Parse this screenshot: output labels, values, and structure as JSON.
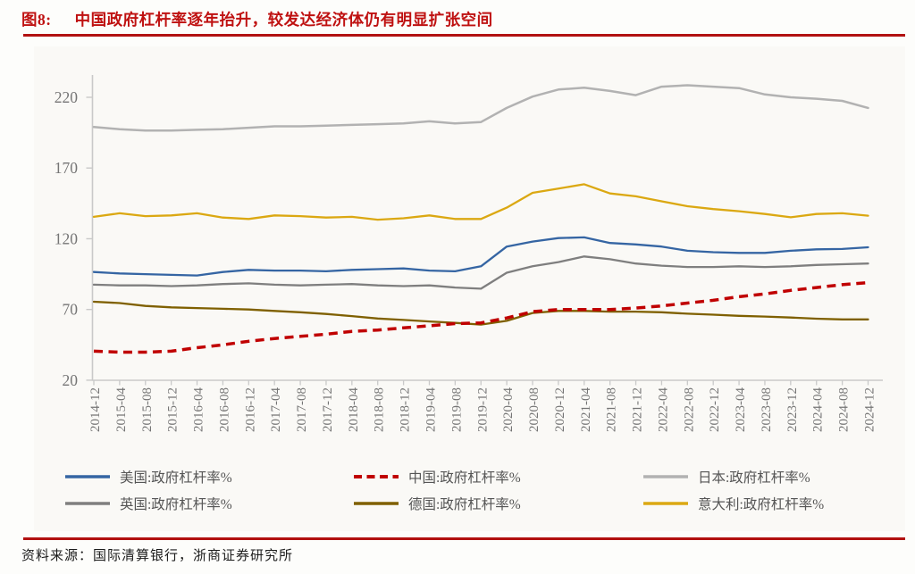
{
  "figure": {
    "label": "图8:",
    "title": "中国政府杠杆率逐年抬升，较发达经济体仍有明显扩张空间"
  },
  "source_text": "资料来源：国际清算银行，浙商证券研究所",
  "accent_colors": {
    "title_red": "#bf1111",
    "rule_red": "#b21111",
    "axis_gray": "#c9c9c9",
    "tick_label_gray": "#757575"
  },
  "chart_data": {
    "type": "line",
    "title": "中国政府杠杆率逐年抬升，较发达经济体仍有明显扩张空间",
    "xlabel": "",
    "ylabel": "",
    "ylim": [
      20,
      220
    ],
    "y_ticks": [
      220,
      170,
      120,
      70,
      20
    ],
    "grid": false,
    "legend_position": "bottom",
    "x_labels": [
      "2014-12",
      "2015-04",
      "2015-08",
      "2015-12",
      "2016-04",
      "2016-08",
      "2016-12",
      "2017-04",
      "2017-08",
      "2017-12",
      "2018-04",
      "2018-08",
      "2018-12",
      "2019-04",
      "2019-08",
      "2019-12",
      "2020-04",
      "2020-08",
      "2020-12",
      "2021-04",
      "2021-08",
      "2021-12",
      "2022-04",
      "2022-08",
      "2022-12",
      "2023-04",
      "2023-08",
      "2023-12",
      "2024-04",
      "2024-08",
      "2024-12"
    ],
    "series": [
      {
        "id": "us",
        "name": "美国:政府杠杆率%",
        "color": "#3565a3",
        "dashed": false,
        "values": [
          96.5,
          95.5,
          95,
          94.5,
          94,
          96.5,
          98,
          97.5,
          97.5,
          97,
          98,
          98.5,
          99,
          97.5,
          97,
          100.5,
          114.5,
          118,
          120.5,
          121,
          117,
          116,
          114.5,
          111.5,
          110.5,
          110,
          110,
          111.5,
          112.5,
          112.8,
          114
        ]
      },
      {
        "id": "china",
        "name": "中国:政府杠杆率%",
        "color": "#c00000",
        "dashed": true,
        "values": [
          40.5,
          39.8,
          39.8,
          40.5,
          43,
          45,
          47.5,
          49.5,
          51,
          52.5,
          54.5,
          55.5,
          57,
          58.5,
          60,
          60.5,
          64,
          68.5,
          70,
          70,
          70,
          71,
          72.5,
          74.5,
          76.5,
          79,
          81,
          83.5,
          85.5,
          87.5,
          89
        ]
      },
      {
        "id": "japan",
        "name": "日本:政府杠杆率%",
        "color": "#b2b2b2",
        "dashed": false,
        "values": [
          199,
          197.5,
          196.5,
          196.5,
          197,
          197.5,
          198.5,
          199.5,
          199.5,
          200,
          200.5,
          201,
          201.5,
          203,
          201.5,
          202.5,
          212.5,
          220.5,
          225.5,
          226.8,
          224.5,
          221.5,
          227.5,
          228.5,
          227.5,
          226.5,
          222,
          220,
          219,
          217.5,
          212.5
        ]
      },
      {
        "id": "uk",
        "name": "英国:政府杠杆率%",
        "color": "#7f7f7f",
        "dashed": false,
        "values": [
          87.5,
          87,
          87,
          86.5,
          87,
          88,
          88.5,
          87.5,
          87,
          87.5,
          88,
          87,
          86.5,
          87,
          85.5,
          84.7,
          96,
          100.5,
          103.5,
          107.5,
          105.5,
          102.5,
          101,
          100,
          100,
          100.5,
          100,
          100.5,
          101.5,
          102,
          102.5
        ]
      },
      {
        "id": "germany",
        "name": "德国:政府杠杆率%",
        "color": "#7f6000",
        "dashed": false,
        "values": [
          75.5,
          74.5,
          72.5,
          71.5,
          71,
          70.5,
          70,
          69,
          68,
          66.8,
          65.3,
          63.6,
          62.6,
          61.5,
          60.5,
          59.3,
          62,
          67.5,
          69,
          69,
          68.5,
          68.5,
          68,
          67,
          66.3,
          65.5,
          65,
          64.3,
          63.5,
          63,
          63
        ]
      },
      {
        "id": "italy",
        "name": "意大利:政府杠杆率%",
        "color": "#dba812",
        "dashed": false,
        "values": [
          135.5,
          138,
          136,
          136.5,
          138,
          135,
          134,
          136.5,
          136,
          135,
          135.5,
          133.5,
          134.5,
          136.5,
          134,
          134,
          142,
          152.5,
          155.5,
          158.5,
          152,
          150,
          146.5,
          143,
          141,
          139.5,
          137.5,
          135.2,
          137.5,
          138,
          136.3
        ]
      }
    ]
  }
}
